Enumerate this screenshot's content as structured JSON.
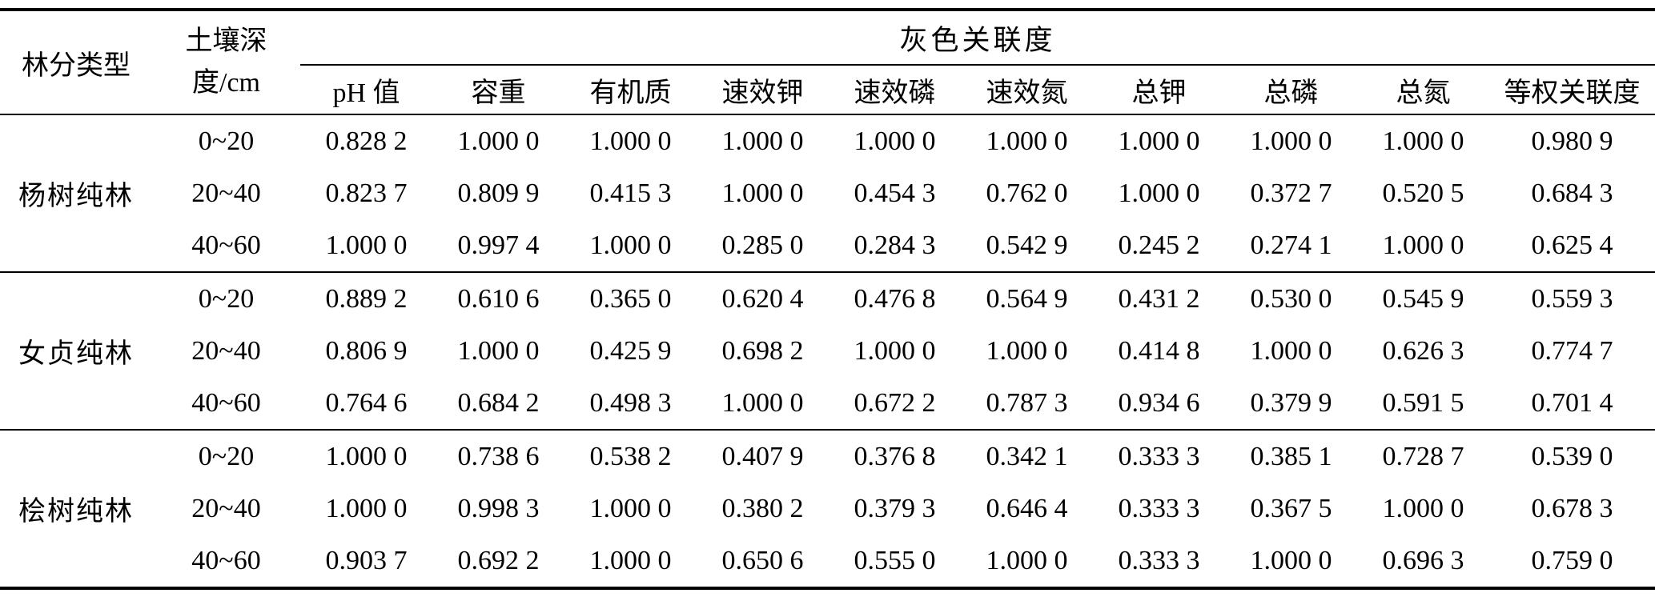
{
  "table": {
    "col1_header": "林分类型",
    "col2_header_line1": "土壤深",
    "col2_header_line2": "度/cm",
    "group_header": "灰色关联度",
    "sub_headers": [
      "pH 值",
      "容重",
      "有机质",
      "速效钾",
      "速效磷",
      "速效氮",
      "总钾",
      "总磷",
      "总氮",
      "等权关联度"
    ],
    "groups": [
      {
        "type": "杨树纯林",
        "rows": [
          {
            "depth": "0~20",
            "values": [
              "0.828 2",
              "1.000 0",
              "1.000 0",
              "1.000 0",
              "1.000 0",
              "1.000 0",
              "1.000 0",
              "1.000 0",
              "1.000 0",
              "0.980 9"
            ]
          },
          {
            "depth": "20~40",
            "values": [
              "0.823 7",
              "0.809 9",
              "0.415 3",
              "1.000 0",
              "0.454 3",
              "0.762 0",
              "1.000 0",
              "0.372 7",
              "0.520 5",
              "0.684 3"
            ]
          },
          {
            "depth": "40~60",
            "values": [
              "1.000 0",
              "0.997 4",
              "1.000 0",
              "0.285 0",
              "0.284 3",
              "0.542 9",
              "0.245 2",
              "0.274 1",
              "1.000 0",
              "0.625 4"
            ]
          }
        ]
      },
      {
        "type": "女贞纯林",
        "rows": [
          {
            "depth": "0~20",
            "values": [
              "0.889 2",
              "0.610 6",
              "0.365 0",
              "0.620 4",
              "0.476 8",
              "0.564 9",
              "0.431 2",
              "0.530 0",
              "0.545 9",
              "0.559 3"
            ]
          },
          {
            "depth": "20~40",
            "values": [
              "0.806 9",
              "1.000 0",
              "0.425 9",
              "0.698 2",
              "1.000 0",
              "1.000 0",
              "0.414 8",
              "1.000 0",
              "0.626 3",
              "0.774 7"
            ]
          },
          {
            "depth": "40~60",
            "values": [
              "0.764 6",
              "0.684 2",
              "0.498 3",
              "1.000 0",
              "0.672 2",
              "0.787 3",
              "0.934 6",
              "0.379 9",
              "0.591 5",
              "0.701 4"
            ]
          }
        ]
      },
      {
        "type": "桧树纯林",
        "rows": [
          {
            "depth": "0~20",
            "values": [
              "1.000 0",
              "0.738 6",
              "0.538 2",
              "0.407 9",
              "0.376 8",
              "0.342 1",
              "0.333 3",
              "0.385 1",
              "0.728 7",
              "0.539 0"
            ]
          },
          {
            "depth": "20~40",
            "values": [
              "1.000 0",
              "0.998 3",
              "1.000 0",
              "0.380 2",
              "0.379 3",
              "0.646 4",
              "0.333 3",
              "0.367 5",
              "1.000 0",
              "0.678 3"
            ]
          },
          {
            "depth": "40~60",
            "values": [
              "0.903 7",
              "0.692 2",
              "1.000 0",
              "0.650 6",
              "0.555 0",
              "1.000 0",
              "0.333 3",
              "1.000 0",
              "0.696 3",
              "0.759 0"
            ]
          }
        ]
      }
    ]
  }
}
